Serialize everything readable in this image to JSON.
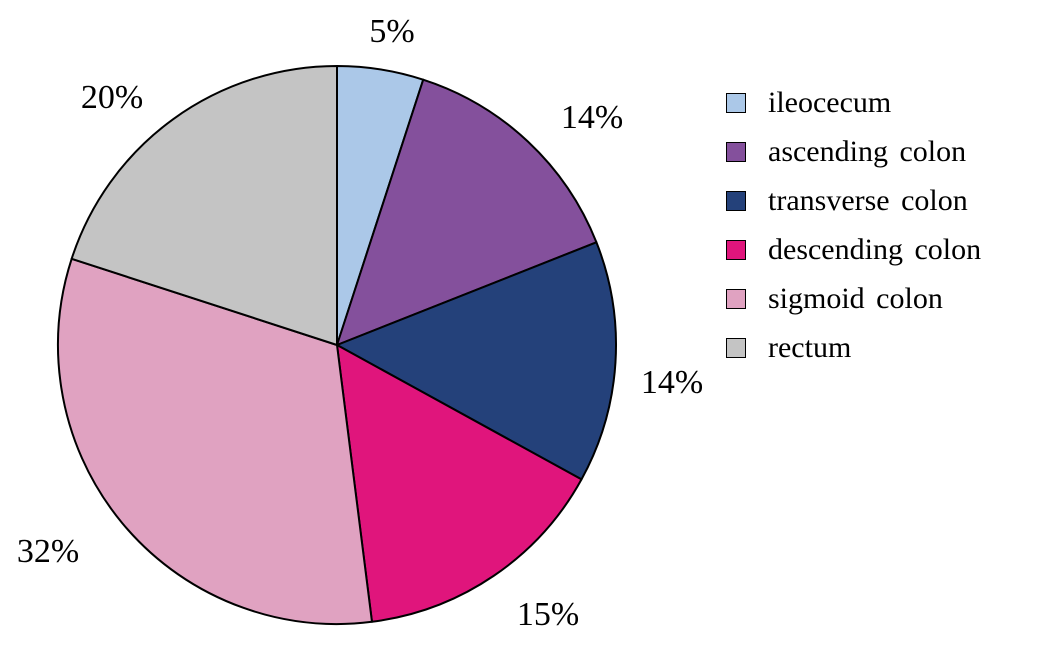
{
  "chart_data": {
    "type": "pie",
    "slices": [
      {
        "label": "ileocecum",
        "value": 5,
        "display": "5%",
        "color": "#abc8e8"
      },
      {
        "label": "ascending colon",
        "value": 14,
        "display": "14%",
        "color": "#84509c"
      },
      {
        "label": "transverse colon",
        "value": 14,
        "display": "14%",
        "color": "#24417a"
      },
      {
        "label": "descending colon",
        "value": 15,
        "display": "15%",
        "color": "#e0157c"
      },
      {
        "label": "sigmoid colon",
        "value": 32,
        "display": "32%",
        "color": "#e0a2c1"
      },
      {
        "label": "rectum",
        "value": 20,
        "display": "20%",
        "color": "#c4c4c4"
      }
    ],
    "start_angle": "12 o'clock",
    "direction": "clockwise",
    "legend_position": "right",
    "title": ""
  }
}
